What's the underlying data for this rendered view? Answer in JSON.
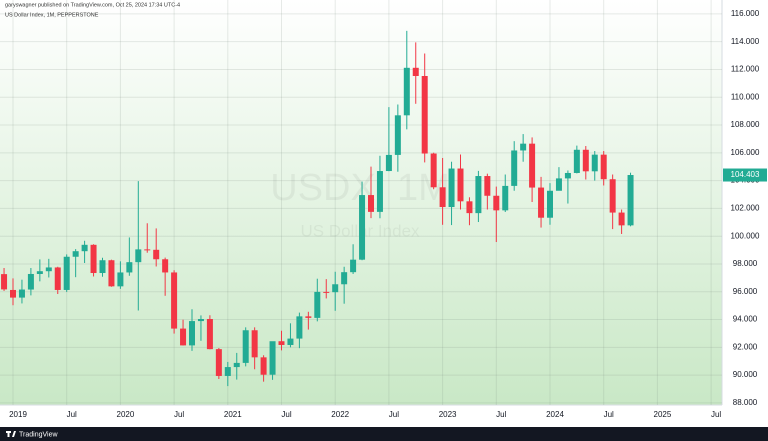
{
  "header": {
    "publisher": "garyswagner published on TradingView.com, Oct 25, 2024 17:34 UTC-4"
  },
  "footer": {
    "brand": "TradingView"
  },
  "chart_data": {
    "type": "candlestick",
    "title": "US Dollar Index, 1M, PEPPERSTONE",
    "watermark": "USDX, 1M",
    "watermark_subtitle": "US Dollar Index",
    "up_color": "#22ab94",
    "down_color": "#f23645",
    "grid": true,
    "x": [
      "2018-12",
      "2019-01",
      "2019-02",
      "2019-03",
      "2019-04",
      "2019-05",
      "2019-06",
      "2019-07",
      "2019-08",
      "2019-09",
      "2019-10",
      "2019-11",
      "2019-12",
      "2020-01",
      "2020-02",
      "2020-03",
      "2020-04",
      "2020-05",
      "2020-06",
      "2020-07",
      "2020-08",
      "2020-09",
      "2020-10",
      "2020-11",
      "2020-12",
      "2021-01",
      "2021-02",
      "2021-03",
      "2021-04",
      "2021-05",
      "2021-06",
      "2021-07",
      "2021-08",
      "2021-09",
      "2021-10",
      "2021-11",
      "2021-12",
      "2022-01",
      "2022-02",
      "2022-03",
      "2022-04",
      "2022-05",
      "2022-06",
      "2022-07",
      "2022-08",
      "2022-09",
      "2022-10",
      "2022-11",
      "2022-12",
      "2023-01",
      "2023-02",
      "2023-03",
      "2023-04",
      "2023-05",
      "2023-06",
      "2023-07",
      "2023-08",
      "2023-09",
      "2023-10",
      "2023-11",
      "2023-12",
      "2024-01",
      "2024-02",
      "2024-03",
      "2024-04",
      "2024-05",
      "2024-06",
      "2024-07",
      "2024-08",
      "2024-09",
      "2024-10"
    ],
    "open": [
      97.27,
      96.13,
      95.58,
      96.16,
      97.28,
      97.48,
      97.75,
      96.13,
      98.52,
      98.92,
      99.38,
      97.35,
      98.27,
      96.39,
      97.39,
      98.13,
      99.05,
      99.02,
      98.34,
      97.39,
      93.35,
      92.14,
      93.89,
      94.04,
      91.87,
      89.94,
      90.58,
      90.88,
      93.23,
      91.28,
      90.03,
      92.44,
      92.17,
      92.63,
      94.23,
      94.12,
      95.99,
      95.97,
      96.54,
      97.41,
      98.31,
      102.96,
      101.75,
      104.69,
      105.85,
      108.7,
      112.12,
      111.53,
      105.95,
      103.52,
      102.1,
      104.87,
      102.51,
      101.66,
      104.33,
      102.91,
      101.86,
      103.62,
      106.17,
      106.66,
      103.5,
      101.33,
      103.27,
      104.16,
      104.55,
      106.22,
      104.67,
      105.87,
      104.1,
      101.7,
      100.78
    ],
    "high": [
      97.71,
      96.96,
      96.87,
      97.71,
      98.33,
      98.37,
      97.8,
      98.69,
      99.07,
      99.67,
      99.42,
      98.45,
      98.31,
      98.19,
      99.91,
      103.96,
      100.93,
      100.56,
      98.46,
      97.55,
      93.99,
      94.74,
      94.3,
      94.31,
      91.95,
      90.95,
      91.6,
      93.44,
      93.44,
      91.43,
      92.41,
      93.19,
      93.73,
      94.5,
      94.56,
      96.94,
      96.91,
      97.44,
      97.8,
      99.42,
      103.93,
      105.01,
      105.79,
      109.29,
      109.48,
      114.78,
      113.95,
      113.15,
      106.01,
      105.63,
      105.36,
      105.88,
      102.8,
      104.7,
      104.5,
      103.57,
      104.44,
      106.84,
      107.35,
      107.11,
      104.27,
      103.82,
      104.97,
      104.73,
      106.52,
      106.49,
      106.13,
      106.13,
      104.44,
      101.92,
      104.57
    ],
    "low": [
      96.06,
      95.03,
      95.16,
      95.74,
      96.75,
      97.03,
      95.84,
      95.99,
      97.05,
      98.07,
      97.1,
      97.08,
      96.36,
      96.21,
      97.15,
      94.65,
      98.81,
      97.82,
      95.71,
      92.99,
      92.13,
      91.75,
      92.47,
      91.86,
      89.72,
      89.21,
      89.68,
      90.63,
      90.42,
      89.53,
      89.66,
      91.78,
      92.0,
      91.94,
      93.28,
      93.87,
      95.52,
      94.63,
      95.14,
      97.28,
      98.27,
      101.3,
      101.29,
      104.68,
      104.64,
      107.69,
      109.53,
      105.31,
      103.38,
      100.82,
      100.8,
      101.92,
      100.79,
      101.02,
      101.92,
      99.58,
      101.74,
      103.27,
      105.36,
      102.46,
      100.62,
      100.82,
      103.37,
      102.35,
      104.52,
      104.08,
      104.0,
      103.65,
      100.51,
      100.16,
      100.71
    ],
    "close": [
      96.17,
      95.58,
      96.16,
      97.28,
      97.48,
      97.75,
      96.13,
      98.52,
      98.92,
      99.38,
      97.35,
      98.27,
      96.39,
      97.39,
      98.13,
      99.05,
      99.02,
      98.34,
      97.39,
      93.35,
      92.14,
      93.89,
      94.04,
      91.87,
      89.94,
      90.58,
      90.88,
      93.23,
      91.28,
      90.03,
      92.44,
      92.17,
      92.63,
      94.23,
      94.12,
      95.99,
      95.97,
      96.54,
      97.41,
      98.31,
      102.96,
      101.75,
      104.69,
      105.85,
      108.7,
      112.12,
      111.53,
      105.95,
      103.52,
      102.1,
      104.87,
      102.51,
      101.66,
      104.33,
      102.91,
      101.86,
      103.62,
      106.17,
      106.66,
      103.5,
      101.33,
      103.27,
      104.16,
      104.55,
      106.22,
      104.67,
      105.87,
      104.1,
      101.7,
      100.78,
      104.403
    ],
    "last_price": 104.403,
    "ylim": [
      87.85,
      117.0
    ],
    "yticks": [
      {
        "value": 88,
        "label": "88.000"
      },
      {
        "value": 90,
        "label": "90.000"
      },
      {
        "value": 92,
        "label": "92.000"
      },
      {
        "value": 94,
        "label": "94.000"
      },
      {
        "value": 96,
        "label": "96.000"
      },
      {
        "value": 98,
        "label": "98.000"
      },
      {
        "value": 100,
        "label": "100.000"
      },
      {
        "value": 102,
        "label": "102.000"
      },
      {
        "value": 104,
        "label": "104.000"
      },
      {
        "value": 106,
        "label": "106.000"
      },
      {
        "value": 108,
        "label": "108.000"
      },
      {
        "value": 110,
        "label": "110.000"
      },
      {
        "value": 112,
        "label": "112.000"
      },
      {
        "value": 114,
        "label": "114.000"
      },
      {
        "value": 116,
        "label": "116.000"
      }
    ],
    "xticks": [
      {
        "value": "2019-01",
        "label": "2019"
      },
      {
        "value": "2019-07",
        "label": "Jul"
      },
      {
        "value": "2020-01",
        "label": "2020"
      },
      {
        "value": "2020-07",
        "label": "Jul"
      },
      {
        "value": "2021-01",
        "label": "2021"
      },
      {
        "value": "2021-07",
        "label": "Jul"
      },
      {
        "value": "2022-01",
        "label": "2022"
      },
      {
        "value": "2022-07",
        "label": "Jul"
      },
      {
        "value": "2023-01",
        "label": "2023"
      },
      {
        "value": "2023-07",
        "label": "Jul"
      },
      {
        "value": "2024-01",
        "label": "2024"
      },
      {
        "value": "2024-07",
        "label": "Jul"
      },
      {
        "value": "2025-01",
        "label": "2025"
      },
      {
        "value": "2025-07",
        "label": "Jul"
      }
    ]
  }
}
